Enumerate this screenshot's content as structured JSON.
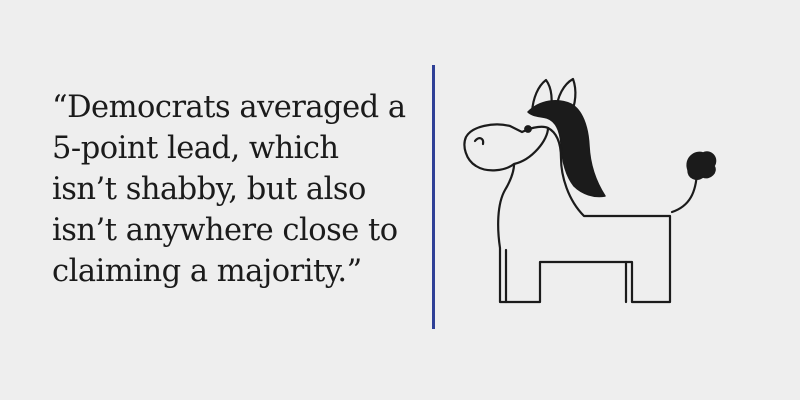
{
  "quote": {
    "lines": [
      "“Democrats averaged a",
      "5-point lead, which",
      "isn’t shabby, but also",
      "isn’t anywhere close to",
      "claiming a majority.”"
    ]
  },
  "colors": {
    "background": "#eeeeee",
    "text": "#1b1b1b",
    "divider": "#2e3f96",
    "illustration_stroke": "#1b1b1b",
    "illustration_fill": "#eeeeee"
  },
  "illustration": {
    "icon": "donkey-icon"
  }
}
